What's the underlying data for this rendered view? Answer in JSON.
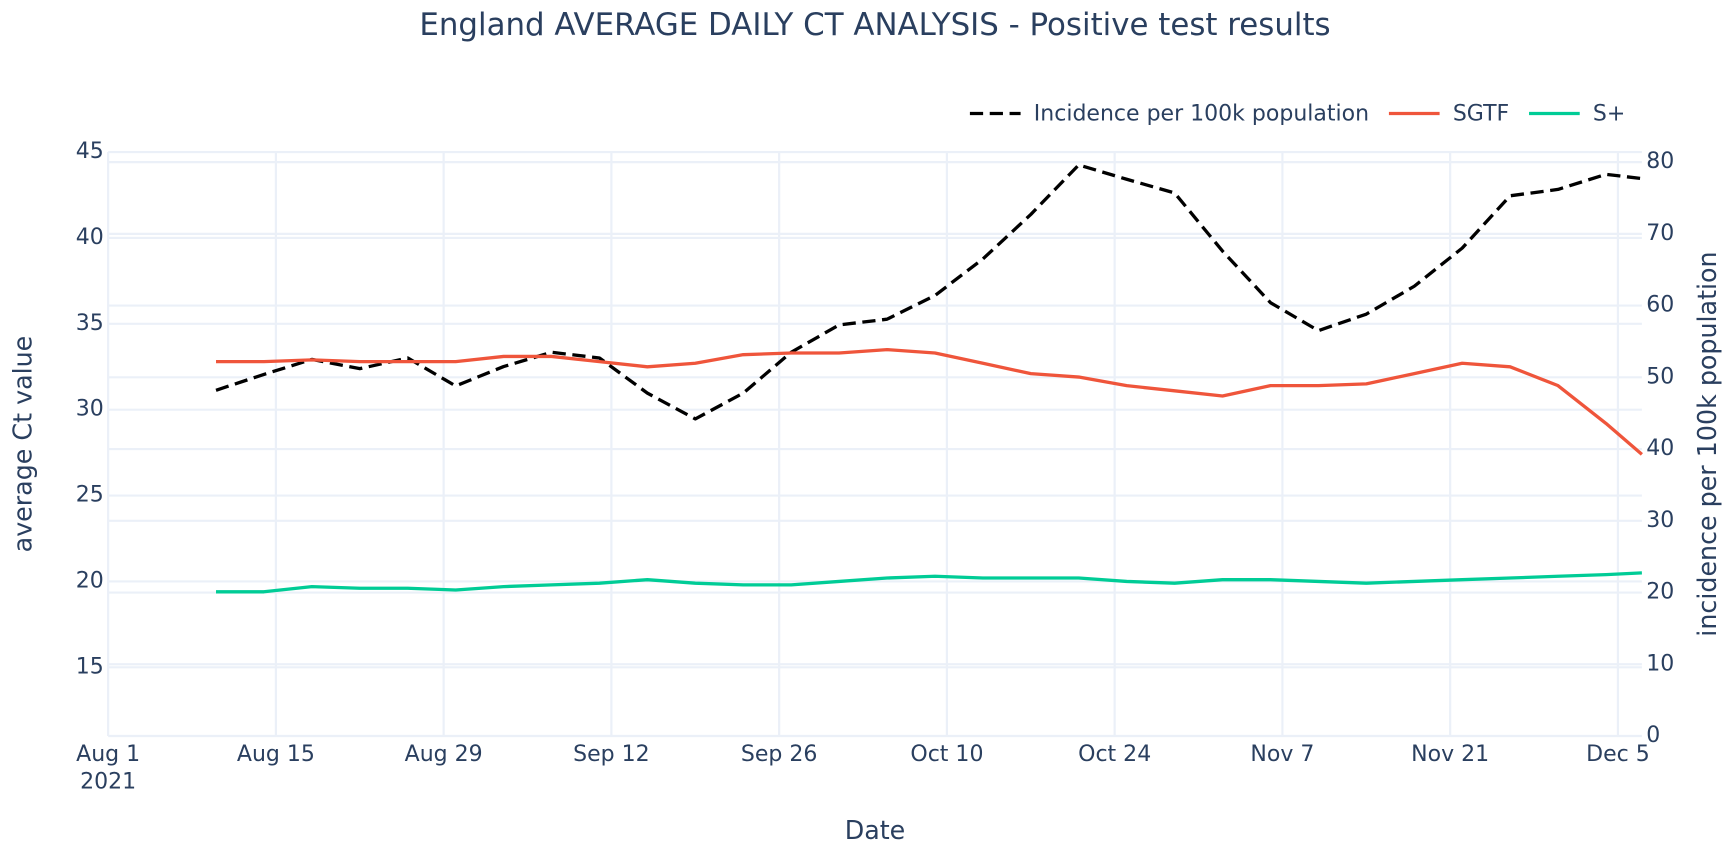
{
  "chart_data": {
    "type": "line",
    "title": "England AVERAGE DAILY CT ANALYSIS  - Positive test results",
    "x_label": "Date",
    "y_label": "average Ct value",
    "y2_label": "incidence per 100k population",
    "x": [
      "2021-08-10",
      "2021-08-14",
      "2021-08-18",
      "2021-08-22",
      "2021-08-26",
      "2021-08-30",
      "2021-09-03",
      "2021-09-07",
      "2021-09-11",
      "2021-09-15",
      "2021-09-19",
      "2021-09-23",
      "2021-09-27",
      "2021-10-01",
      "2021-10-05",
      "2021-10-09",
      "2021-10-13",
      "2021-10-17",
      "2021-10-21",
      "2021-10-25",
      "2021-10-29",
      "2021-11-02",
      "2021-11-06",
      "2021-11-10",
      "2021-11-14",
      "2021-11-18",
      "2021-11-22",
      "2021-11-26",
      "2021-11-30",
      "2021-12-04",
      "2021-12-07"
    ],
    "series": [
      {
        "name": "Incidence per 100k population",
        "color": "#000000",
        "dash": "dash",
        "axis": "y2",
        "values": [
          48.2,
          50.4,
          52.5,
          51.2,
          52.7,
          48.8,
          51.5,
          53.5,
          52.7,
          47.8,
          44.2,
          47.8,
          53.5,
          57.3,
          58.1,
          61.4,
          66.5,
          72.7,
          79.6,
          77.6,
          75.7,
          67.6,
          60.4,
          56.5,
          58.8,
          62.7,
          68.0,
          75.3,
          76.2,
          78.3,
          77.7
        ]
      },
      {
        "name": "SGTF",
        "color": "#ef553b",
        "values": [
          32.8,
          32.8,
          32.9,
          32.8,
          32.8,
          32.8,
          33.1,
          33.1,
          32.8,
          32.5,
          32.7,
          33.2,
          33.3,
          33.3,
          33.5,
          33.3,
          32.7,
          32.1,
          31.9,
          31.4,
          31.1,
          30.8,
          31.4,
          31.4,
          31.5,
          32.1,
          32.7,
          32.5,
          31.4,
          29.2,
          27.4
        ]
      },
      {
        "name": "S+",
        "color": "#00cc96",
        "values": [
          19.4,
          19.4,
          19.7,
          19.6,
          19.6,
          19.5,
          19.7,
          19.8,
          19.9,
          20.1,
          19.9,
          19.8,
          19.8,
          20.0,
          20.2,
          20.3,
          20.2,
          20.2,
          20.2,
          20.0,
          19.9,
          20.1,
          20.1,
          20.0,
          19.9,
          20.0,
          20.1,
          20.2,
          20.3,
          20.4,
          20.5
        ]
      }
    ],
    "xlim": [
      "2021-08-01",
      "2021-12-07"
    ],
    "xticks": [
      {
        "value": "2021-08-01",
        "label": "Aug 1"
      },
      {
        "value": "2021-08-15",
        "label": "Aug 15"
      },
      {
        "value": "2021-08-29",
        "label": "Aug 29"
      },
      {
        "value": "2021-09-12",
        "label": "Sep 12"
      },
      {
        "value": "2021-09-26",
        "label": "Sep 26"
      },
      {
        "value": "2021-10-10",
        "label": "Oct 10"
      },
      {
        "value": "2021-10-24",
        "label": "Oct 24"
      },
      {
        "value": "2021-11-07",
        "label": "Nov 7"
      },
      {
        "value": "2021-11-21",
        "label": "Nov 21"
      },
      {
        "value": "2021-12-05",
        "label": "Dec 5"
      }
    ],
    "xtick_year": "2021",
    "ylim": [
      11,
      45
    ],
    "yticks": [
      15,
      20,
      25,
      30,
      35,
      40,
      45
    ],
    "y2lim": [
      0,
      81.4
    ],
    "y2ticks": [
      0,
      10,
      20,
      30,
      40,
      50,
      60,
      70,
      80
    ],
    "grid": true,
    "legend": "top-right"
  }
}
